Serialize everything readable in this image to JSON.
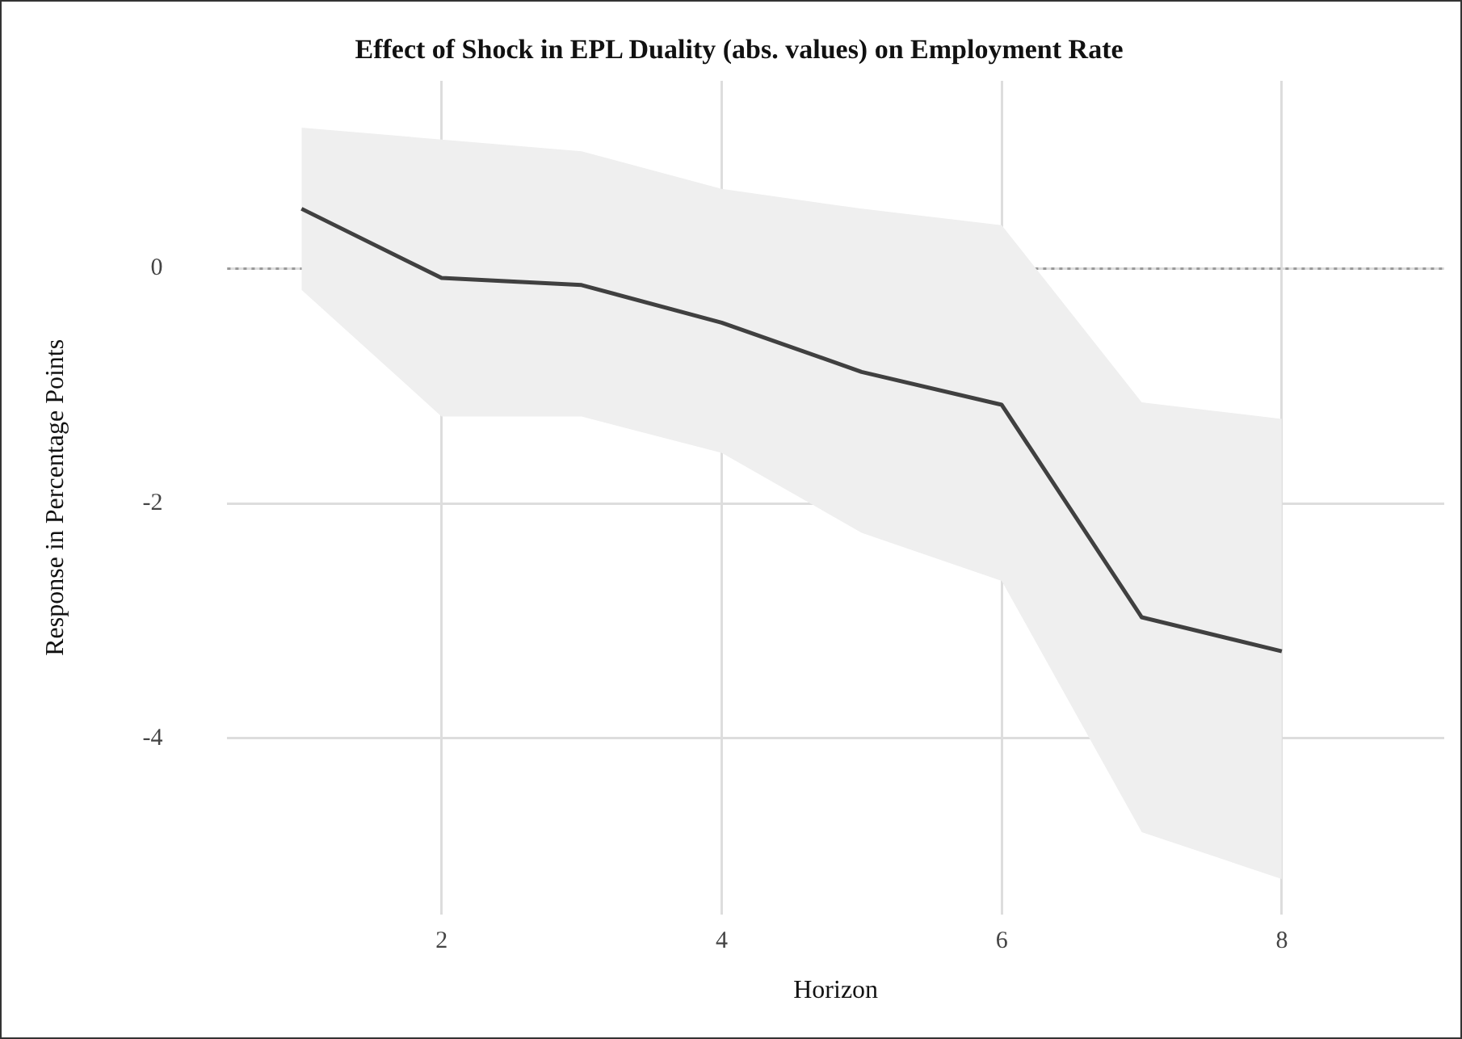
{
  "chart_data": {
    "type": "line",
    "title": "Effect of Shock in EPL Duality (abs. values) on Employment Rate",
    "xlabel": "Horizon",
    "ylabel": "Response in Percentage Points",
    "x": [
      1,
      2,
      3,
      4,
      5,
      6,
      7,
      8
    ],
    "series": [
      {
        "color": "#404040",
        "values": [
          0.51,
          -0.08,
          -0.14,
          -0.46,
          -0.88,
          -1.16,
          -2.97,
          -3.26
        ],
        "lower": [
          -0.18,
          -1.26,
          -1.26,
          -1.57,
          -2.25,
          -2.66,
          -4.8,
          -5.2
        ],
        "upper": [
          1.2,
          1.1,
          1.0,
          0.68,
          0.51,
          0.37,
          -1.14,
          -1.28
        ]
      }
    ],
    "xlim": [
      0.47,
      9.16
    ],
    "xticks": [
      2,
      4,
      6,
      8
    ],
    "ylim": [
      -5.5,
      1.6
    ],
    "yticks": [
      -4,
      -2,
      0
    ],
    "ref_lines": [
      {
        "axis": "y",
        "value": 0,
        "color": "#999999",
        "line_style": "dotted"
      }
    ],
    "grid": true,
    "legend": false,
    "marker": "none",
    "line_style": "solid"
  }
}
